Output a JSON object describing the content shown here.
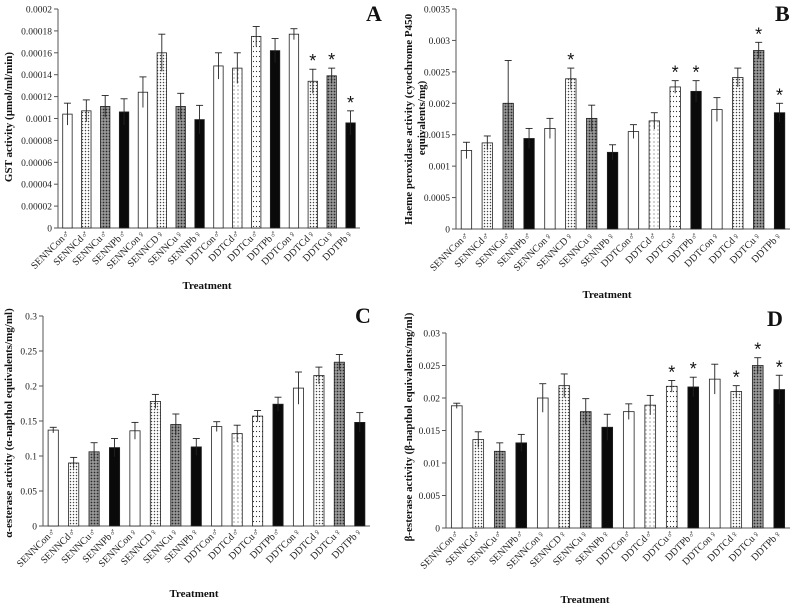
{
  "chart_data": [
    {
      "panel": "A",
      "type": "bar",
      "ylabel": "GST activity (µmol/ml/min)",
      "xlabel": "Treatment",
      "ylim": [
        0,
        0.0002
      ],
      "yticks": [
        "0",
        "0.00002",
        "0.00004",
        "0.00006",
        "0.00008",
        "0.0001",
        "0.00012",
        "0.00014",
        "0.00016",
        "0.00018",
        "0.0002"
      ],
      "grid": false,
      "categories": [
        "SENNCon♂",
        "SENNCd♂",
        "SENNCu♂",
        "SENNPb♂",
        "SENNCon♀",
        "SENNCD♀",
        "SENNCu♀",
        "SENNPb♀",
        "DDTCon♂",
        "DDTCd♂",
        "DDTCu♂",
        "DDTPb♂",
        "DDTCon♀",
        "DDTCd♀",
        "DDTCu♀",
        "DDTPb♀"
      ],
      "values": [
        0.000104,
        0.000107,
        0.000111,
        0.000106,
        0.000124,
        0.00016,
        0.000111,
        9.9e-05,
        0.000148,
        0.000146,
        0.000175,
        0.000162,
        0.000177,
        0.000134,
        0.000139,
        9.6e-05
      ],
      "errors": [
        1e-05,
        1e-05,
        1e-05,
        1.2e-05,
        1.4e-05,
        1.7e-05,
        1.2e-05,
        1.3e-05,
        1.2e-05,
        1.4e-05,
        9e-06,
        1.1e-05,
        5e-06,
        1.1e-05,
        7e-06,
        1.1e-05
      ],
      "significant": [
        "",
        "",
        "",
        "",
        "",
        "",
        "",
        "",
        "",
        "",
        "",
        "",
        "",
        "*",
        "*",
        "*"
      ]
    },
    {
      "panel": "B",
      "type": "bar",
      "ylabel": "Haeme peroxidase activity (cytochrome P450 equivalents/mg)",
      "xlabel": "Treatment",
      "ylim": [
        0,
        0.0035
      ],
      "yticks": [
        "0",
        "0.0005",
        "0.001",
        "0.0015",
        "0.002",
        "0.0025",
        "0.003",
        "0.0035"
      ],
      "grid": false,
      "categories": [
        "SENNCon♂",
        "SENNCd♂",
        "SENNCu♂",
        "SENNPb♂",
        "SENNCon♀",
        "SENNCD♀",
        "SENNCu♀",
        "SENNPb♀",
        "DDTCon♂",
        "DDTCd♂",
        "DDTCu♂",
        "DDTPb♂",
        "DDTCon♀",
        "DDTCd♀",
        "DDTCu♀",
        "DDTPb♀"
      ],
      "values": [
        0.00125,
        0.00137,
        0.002,
        0.00144,
        0.0016,
        0.00239,
        0.00176,
        0.00122,
        0.00155,
        0.00172,
        0.00226,
        0.00219,
        0.0019,
        0.00241,
        0.00284,
        0.00185
      ],
      "errors": [
        0.00013,
        0.00011,
        0.00068,
        0.00016,
        0.00016,
        0.00017,
        0.00021,
        0.00012,
        0.00011,
        0.00013,
        0.0001,
        0.00017,
        0.00019,
        0.00015,
        0.00013,
        0.00015
      ],
      "significant": [
        "",
        "",
        "",
        "",
        "",
        "*",
        "",
        "",
        "",
        "",
        "*",
        "*",
        "",
        "",
        "*",
        "*"
      ]
    },
    {
      "panel": "C",
      "type": "bar",
      "ylabel": "α-esterase activity (α-napthol equivalents/mg/ml)",
      "xlabel": "Treatment",
      "ylim": [
        0,
        0.3
      ],
      "yticks": [
        "0",
        "0.05",
        "0.1",
        "0.15",
        "0.2",
        "0.25",
        "0.3"
      ],
      "grid": false,
      "categories": [
        "SENNCon♂",
        "SENNCd♂",
        "SENNCu♂",
        "SENNPb♂",
        "SENNCon♀",
        "SENNCD♀",
        "SENNCu♀",
        "SENNPb♀",
        "DDTCon♂",
        "DDTCd♂",
        "DDTCu♂",
        "DDTPb♂",
        "DDTCon♀",
        "DDTCd♀",
        "DDTCu♀",
        "DDTPb♀"
      ],
      "values": [
        0.137,
        0.09,
        0.106,
        0.112,
        0.136,
        0.178,
        0.145,
        0.113,
        0.142,
        0.132,
        0.157,
        0.174,
        0.197,
        0.215,
        0.234,
        0.148
      ],
      "errors": [
        0.004,
        0.008,
        0.013,
        0.013,
        0.012,
        0.01,
        0.015,
        0.012,
        0.007,
        0.012,
        0.008,
        0.01,
        0.023,
        0.012,
        0.011,
        0.014
      ],
      "significant": [
        "",
        "",
        "",
        "",
        "",
        "",
        "",
        "",
        "",
        "",
        "",
        "",
        "",
        "",
        "",
        ""
      ]
    },
    {
      "panel": "D",
      "type": "bar",
      "ylabel": "β-esterase activity (β-napthol equivalents/mg/ml)",
      "xlabel": "Treatment",
      "ylim": [
        0,
        0.03
      ],
      "yticks": [
        "0",
        "0.005",
        "0.01",
        "0.015",
        "0.02",
        "0.025",
        "0.03"
      ],
      "grid": false,
      "categories": [
        "SENNCon♂",
        "SENNCd♂",
        "SENNCu♂",
        "SENNPb♂",
        "SENNCon♀",
        "SENNCD♀",
        "SENNCu♀",
        "SENNPb♀",
        "DDTCon♂",
        "DDTCd♂",
        "DDTCu♂",
        "DDTPb♂",
        "DDTCon♀",
        "DDTCd♀",
        "DDTCu♀",
        "DDTPb♀"
      ],
      "values": [
        0.0188,
        0.0136,
        0.0118,
        0.0131,
        0.02,
        0.0219,
        0.0179,
        0.0155,
        0.0179,
        0.0189,
        0.0218,
        0.0217,
        0.0229,
        0.021,
        0.025,
        0.0213
      ],
      "errors": [
        0.0004,
        0.0012,
        0.0013,
        0.0013,
        0.0022,
        0.0018,
        0.002,
        0.002,
        0.0012,
        0.0015,
        0.0009,
        0.0015,
        0.0023,
        0.0009,
        0.0012,
        0.0022
      ],
      "significant": [
        "",
        "",
        "",
        "",
        "",
        "",
        "",
        "",
        "",
        "",
        "*",
        "*",
        "",
        "*",
        "*",
        "*"
      ]
    }
  ],
  "style": {
    "patterns": [
      "white",
      "dots-dense",
      "grid-dots",
      "black",
      "white",
      "dots-dense",
      "grid-dots",
      "black",
      "white",
      "dots-sparse",
      "dots-vertical",
      "black",
      "white",
      "dots-dense",
      "grid-dots",
      "black"
    ]
  }
}
